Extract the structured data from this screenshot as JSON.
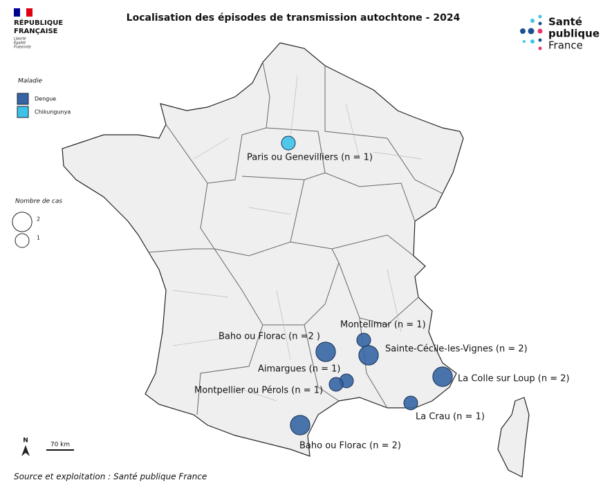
{
  "header": {
    "title": "Localisation des épisodes de transmission autochtone - 2024",
    "republique": "RÉPUBLIQUE",
    "francaise": "FRANÇAISE",
    "motto": [
      "Liberté",
      "Égalité",
      "Fraternité"
    ],
    "brand": [
      "Santé",
      "publique",
      "France"
    ]
  },
  "legend": {
    "disease_title": "Maladie",
    "diseases": [
      {
        "name": "Dengue",
        "color": "#3565a3"
      },
      {
        "name": "Chikungunya",
        "color": "#3ec3e8"
      }
    ],
    "size_title": "Nombre de cas",
    "sizes": [
      2,
      1
    ]
  },
  "points": [
    {
      "label": "Paris ou Genevilliers (n = 1)",
      "cases": 1,
      "disease": 1
    },
    {
      "label": "Montelimar (n = 1)",
      "cases": 1,
      "disease": 0
    },
    {
      "label": "Baho ou Florac (n =2 )",
      "cases": 2,
      "disease": 0
    },
    {
      "label": "Sainte-Cécile-les-Vignes (n = 2)",
      "cases": 2,
      "disease": 0
    },
    {
      "label": "Aimargues (n = 1)",
      "cases": 1,
      "disease": 0
    },
    {
      "label": "Montpellier ou Pérols (n = 1)",
      "cases": 1,
      "disease": 0
    },
    {
      "label": "La Colle sur Loup (n = 2)",
      "cases": 2,
      "disease": 0
    },
    {
      "label": "La Crau (n = 1)",
      "cases": 1,
      "disease": 0
    },
    {
      "label": "Baho ou Florac (n = 2)",
      "cases": 2,
      "disease": 0
    }
  ],
  "scale": "70 km",
  "north": "N",
  "source": "Source et exploitation : Santé publique France"
}
